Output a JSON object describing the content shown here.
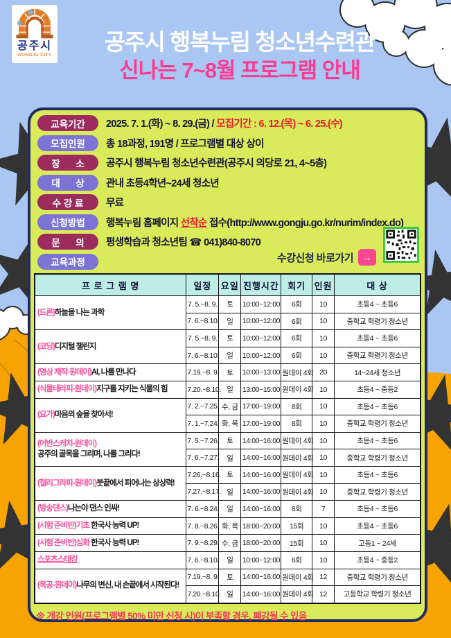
{
  "palette": {
    "sky_blue": "#A9C7F2",
    "ground_orange": "#F7A301",
    "panel_green": "#D9EA5A",
    "panel_border_navy": "#232a5c",
    "pill_maroon": "#9C2C5D",
    "pill_purple": "#7C74D4",
    "accent_pink": "#FA3C92",
    "table_header_cyan": "#BDEDE5",
    "alert_red": "#E8192C",
    "qr_border_green": "#3BCB3B",
    "apply_button_pink": "#F8478F"
  },
  "logo": {
    "city": "공주시",
    "city_en": "GONGJU CITY"
  },
  "header": {
    "title": "공주시 행복누림 청소년수련관",
    "subtitle": "신나는 7~8월 프로그램 안내"
  },
  "info": {
    "rows": [
      {
        "label": "교육기간",
        "style": "maroon",
        "segments": [
          {
            "text": "2025. 7. 1.(화) ~ 8. 29.(금) / ",
            "style": "normal"
          },
          {
            "text": "모집기간 : 6. 12.(목) ~ 6. 25.(수)",
            "style": "red"
          }
        ]
      },
      {
        "label": "모집인원",
        "style": "purple",
        "segments": [
          {
            "text": "총 18과정, 191명 / 프로그램별 대상 상이",
            "style": "normal"
          }
        ]
      },
      {
        "label": "장      소",
        "style": "maroon",
        "segments": [
          {
            "text": "공주시 행복누림 청소년수련관(공주시 의당로 21, 4~5층)",
            "style": "normal"
          }
        ]
      },
      {
        "label": "대      상",
        "style": "purple",
        "segments": [
          {
            "text": "관내 초등4학년~24세 청소년",
            "style": "normal"
          }
        ]
      },
      {
        "label": "수 강 료",
        "style": "maroon",
        "segments": [
          {
            "text": "무료",
            "style": "normal"
          }
        ]
      },
      {
        "label": "신청방법",
        "style": "purple",
        "segments": [
          {
            "text": "행복누림 홈페이지 ",
            "style": "normal"
          },
          {
            "text": "선착순",
            "style": "red-underline"
          },
          {
            "text": " 접수(http://www.gongju.go.kr/nurim/index.do)",
            "style": "normal"
          }
        ]
      },
      {
        "label": "문      의",
        "style": "maroon",
        "segments": [
          {
            "text": "평생학습과 청소년팀 ☎ 041)840-8070",
            "style": "normal"
          }
        ]
      },
      {
        "label": "교육과정",
        "style": "purple",
        "segments": []
      }
    ]
  },
  "apply": {
    "label": "수강신청 바로가기",
    "arrow": "→"
  },
  "table": {
    "headers": [
      "프 로 그 램 명",
      "일정",
      "요일",
      "진행시간",
      "회기",
      "인원",
      "대 상"
    ],
    "programs": [
      {
        "tag": "(드론)",
        "title": "하늘을 나는 과학",
        "sessions": [
          {
            "dates": "7. 5.~8. 9.",
            "day": "토",
            "time": "10:00~12:00",
            "count": "6회",
            "cap": "10",
            "target": "초등4 ~ 초등6"
          },
          {
            "dates": "7. 6.~8.10.",
            "day": "일",
            "time": "10:00~12:00",
            "count": "6회",
            "cap": "10",
            "target": "중학교 학령기 청소년"
          }
        ]
      },
      {
        "tag": "(코딩)",
        "title": "디지털 챌린지",
        "sessions": [
          {
            "dates": "7. 5.~8. 9.",
            "day": "토",
            "time": "10:00~12:00",
            "count": "6회",
            "cap": "10",
            "target": "초등4 ~ 초등6"
          },
          {
            "dates": "7. 6.~8.10.",
            "day": "일",
            "time": "10:00~12:00",
            "count": "6회",
            "cap": "10",
            "target": "중학교 학령기 청소년"
          }
        ]
      },
      {
        "tag": "(영상  제작-원데이)",
        "title": "AI, 나를 만나다",
        "sessions": [
          {
            "dates": "7.19.~8. 9.",
            "day": "토",
            "time": "10:00~13:00",
            "count": "원데이 4회",
            "cap": "20",
            "target": "14~24세 청소년"
          }
        ]
      },
      {
        "tag": "(식물테라피-원데이)",
        "title": "지구를 지키는 식물의 힘",
        "sessions": [
          {
            "dates": "7.20.~8.10.",
            "day": "일",
            "time": "13:00~15:00",
            "count": "원데이 4회",
            "cap": "10",
            "target": "초등4 ~ 중등2"
          }
        ]
      },
      {
        "tag": "(요가)",
        "title": "마음의 숲을 찾아서!",
        "sessions": [
          {
            "dates": "7. 2.~7.25.",
            "day": "수, 금",
            "time": "17:00~19:00",
            "count": "8회",
            "cap": "10",
            "target": "초등4 ~ 초등6"
          },
          {
            "dates": "7. 1.~7.24.",
            "day": "화, 목",
            "time": "17:00~19:00",
            "count": "8회",
            "cap": "10",
            "target": "중학교 학령기 청소년"
          }
        ]
      },
      {
        "tag": "(어반스케치-원데이)",
        "title": "",
        "title2": "공주의 골목을 그리며, 나를 그리다!",
        "sessions": [
          {
            "dates": "7. 5.~7.26.",
            "day": "토",
            "time": "14:00~16:00",
            "count": "원데이 4회",
            "cap": "10",
            "target": "초등4 ~ 초등6"
          },
          {
            "dates": "7. 6.~7.27.",
            "day": "일",
            "time": "14:00~16:00",
            "count": "원데이 4회",
            "cap": "10",
            "target": "중학교 학령기 청소년"
          }
        ]
      },
      {
        "tag": "(캘리그라피-원데이)",
        "title": "붓끝에서 피어나는 상상력!",
        "sessions": [
          {
            "dates": "7.26.~8.16.",
            "day": "토",
            "time": "14:00~16:00",
            "count": "원데이 4회",
            "cap": "10",
            "target": "초등4 ~ 초등6"
          },
          {
            "dates": "7.27.~8.17.",
            "day": "일",
            "time": "14:00~16:00",
            "count": "원데이 4회",
            "cap": "10",
            "target": "중학교 학령기 청소년"
          }
        ]
      },
      {
        "tag": "(방송댄스)",
        "title": "나는야 댄스 인싸!",
        "sessions": [
          {
            "dates": "7. 6.~8.24.",
            "day": "일",
            "time": "14:00~16:00",
            "count": "8회",
            "cap": "7",
            "target": "초등4 ~ 초등6"
          }
        ]
      },
      {
        "tag": "(시험 준비반)기초",
        "title": " 한국사 능력 UP!",
        "sessions": [
          {
            "dates": "7. 8.~8.26.",
            "day": "화, 목",
            "time": "18:00~20:00",
            "count": "15회",
            "cap": "10",
            "target": "초등4 ~ 초등6"
          }
        ]
      },
      {
        "tag": "(시험 준비반)심화",
        "title": " 한국사 능력 UP!",
        "sessions": [
          {
            "dates": "7. 9.~8.29.",
            "day": "수, 금",
            "time": "18:00~20:00",
            "count": "15회",
            "cap": "10",
            "target": "고등1 ~ 24세"
          }
        ]
      },
      {
        "tag": "스포츠스태킹",
        "title": "",
        "underline": true,
        "sessions": [
          {
            "dates": "7. 6.~8.10.",
            "day": "일",
            "time": "10:00~12:00",
            "count": "6회",
            "cap": "10",
            "target": "초등4 ~ 중등2"
          }
        ]
      },
      {
        "tag": "(목공-원데이)",
        "title": "나무의 변신, 내 손끝에서 시작된다!",
        "sessions": [
          {
            "dates": "7.19.~8. 9.",
            "day": "토",
            "time": "14:00~16:00",
            "count": "원데이 4회",
            "cap": "12",
            "target": "중학교 학령기 청소년"
          },
          {
            "dates": "7.20.~8.10.",
            "day": "일",
            "time": "14:00~16:00",
            "count": "원데이 4회",
            "cap": "12",
            "target": "고등학교 학령기 청소년"
          }
        ]
      }
    ]
  },
  "footnote": "※ 개강 인원(프로그램별 50% 미만 신청 시)이 부족할 경우, 폐강될 수 있음"
}
